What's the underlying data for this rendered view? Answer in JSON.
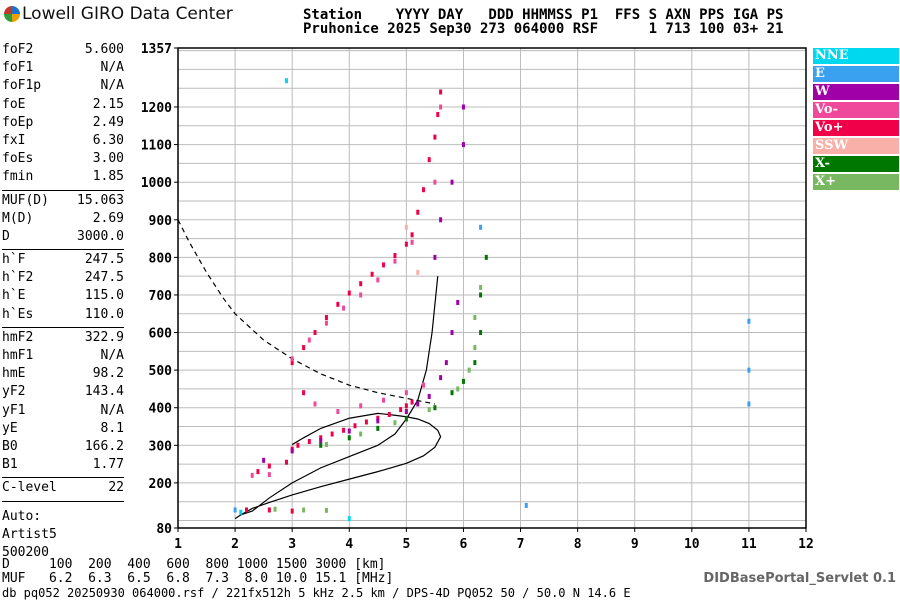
{
  "brand": {
    "name": "Lowell GIRO Data Center",
    "logo_icon": "pinwheel-icon",
    "logo_colors": [
      "#1a73c9",
      "#e8a000",
      "#2e9d3a",
      "#c0392b"
    ]
  },
  "header": {
    "line1": "Station    YYYY DAY   DDD HHMMSS P1  FFS S AXN PPS IGA PS",
    "line2": "Pruhonice 2025 Sep30 273 064000 RSF      1 713 100 03+ 21"
  },
  "params": {
    "group1": [
      {
        "label": "foF2",
        "value": "5.600"
      },
      {
        "label": "foF1",
        "value": "N/A"
      },
      {
        "label": "foF1p",
        "value": "N/A"
      },
      {
        "label": "foE",
        "value": "2.15"
      },
      {
        "label": "foEp",
        "value": "2.49"
      },
      {
        "label": "fxI",
        "value": "6.30"
      },
      {
        "label": "foEs",
        "value": "3.00"
      },
      {
        "label": "fmin",
        "value": "1.85"
      }
    ],
    "group2": [
      {
        "label": "MUF(D)",
        "value": "15.063"
      },
      {
        "label": "M(D)",
        "value": "2.69"
      },
      {
        "label": "D",
        "value": "3000.0"
      }
    ],
    "group3": [
      {
        "label": "h`F",
        "value": "247.5"
      },
      {
        "label": "h`F2",
        "value": "247.5"
      },
      {
        "label": "h`E",
        "value": "115.0"
      },
      {
        "label": "h`Es",
        "value": "110.0"
      }
    ],
    "group4": [
      {
        "label": "hmF2",
        "value": "322.9"
      },
      {
        "label": "hmF1",
        "value": "N/A"
      },
      {
        "label": "hmE",
        "value": "98.2"
      },
      {
        "label": "yF2",
        "value": "143.4"
      },
      {
        "label": "yF1",
        "value": "N/A"
      },
      {
        "label": "yE",
        "value": "8.1"
      },
      {
        "label": "B0",
        "value": "166.2"
      },
      {
        "label": "B1",
        "value": "1.77"
      }
    ],
    "group5": [
      {
        "label": "C-level",
        "value": "22"
      }
    ]
  },
  "auto": {
    "line1": "Auto:",
    "line2": "Artist5",
    "line3": "500200"
  },
  "legend": [
    {
      "label": "NNE",
      "color": "#00d8f0"
    },
    {
      "label": "E",
      "color": "#3aa0f0"
    },
    {
      "label": "W",
      "color": "#a000a8"
    },
    {
      "label": "Vo-",
      "color": "#f0489a"
    },
    {
      "label": "Vo+",
      "color": "#f00048"
    },
    {
      "label": "SSW",
      "color": "#f8b0a8"
    },
    {
      "label": "X-",
      "color": "#007800"
    },
    {
      "label": "X+",
      "color": "#78b860"
    }
  ],
  "bottom": {
    "d_line": "D     100  200  400  600  800 1000 1500 3000 [km]",
    "muf_line": "MUF   6.2  6.3  6.5  6.8  7.3  8.0 10.0 15.1 [MHz]",
    "file_line": "db pq052 20250930 064000.rsf / 221fx512h 5 kHz 2.5 km / DPS-4D PQ052 50 / 50.0 N 14.6 E"
  },
  "servlet": "DIDBasePortal_Servlet 0.1",
  "chart_data": {
    "type": "scatter",
    "xlim": [
      1,
      12
    ],
    "ylim": [
      80,
      1357
    ],
    "x_ticks": [
      1,
      2,
      3,
      4,
      5,
      6,
      7,
      8,
      9,
      10,
      11,
      12
    ],
    "y_ticks": [
      80,
      200,
      300,
      400,
      500,
      600,
      700,
      800,
      900,
      1000,
      1100,
      1200,
      1357
    ],
    "grid": true,
    "legend_position": "right",
    "series": [
      {
        "name": "Vo+",
        "color": "#f00048",
        "points": [
          [
            2.4,
            230
          ],
          [
            2.6,
            245
          ],
          [
            2.9,
            255
          ],
          [
            3.0,
            290
          ],
          [
            3.1,
            300
          ],
          [
            3.3,
            310
          ],
          [
            3.5,
            320
          ],
          [
            3.7,
            330
          ],
          [
            3.9,
            340
          ],
          [
            4.1,
            352
          ],
          [
            4.3,
            362
          ],
          [
            4.5,
            372
          ],
          [
            4.7,
            382
          ],
          [
            4.9,
            395
          ],
          [
            5.0,
            405
          ],
          [
            5.1,
            415
          ],
          [
            3.0,
            520
          ],
          [
            3.2,
            560
          ],
          [
            3.4,
            600
          ],
          [
            3.6,
            640
          ],
          [
            3.8,
            675
          ],
          [
            4.0,
            705
          ],
          [
            4.2,
            730
          ],
          [
            4.4,
            755
          ],
          [
            4.6,
            780
          ],
          [
            4.8,
            805
          ],
          [
            5.0,
            835
          ],
          [
            5.1,
            860
          ],
          [
            5.2,
            920
          ],
          [
            5.3,
            980
          ],
          [
            5.4,
            1060
          ],
          [
            5.5,
            1120
          ],
          [
            5.55,
            1180
          ],
          [
            5.6,
            1240
          ],
          [
            3.2,
            440
          ],
          [
            2.2,
            128
          ],
          [
            2.6,
            128
          ],
          [
            3.0,
            125
          ]
        ]
      },
      {
        "name": "Vo-",
        "color": "#f0489a",
        "points": [
          [
            3.0,
            530
          ],
          [
            3.3,
            580
          ],
          [
            3.6,
            625
          ],
          [
            3.9,
            665
          ],
          [
            4.2,
            700
          ],
          [
            4.5,
            740
          ],
          [
            4.8,
            790
          ],
          [
            5.1,
            840
          ],
          [
            3.4,
            410
          ],
          [
            3.8,
            390
          ],
          [
            4.2,
            405
          ],
          [
            4.6,
            420
          ],
          [
            5.0,
            440
          ],
          [
            5.3,
            460
          ],
          [
            5.5,
            1000
          ],
          [
            5.6,
            1200
          ],
          [
            2.3,
            220
          ],
          [
            2.6,
            222
          ]
        ]
      },
      {
        "name": "W",
        "color": "#a000a8",
        "points": [
          [
            2.5,
            260
          ],
          [
            3.0,
            285
          ],
          [
            3.5,
            312
          ],
          [
            4.0,
            338
          ],
          [
            4.5,
            365
          ],
          [
            5.0,
            390
          ],
          [
            5.2,
            410
          ],
          [
            5.4,
            430
          ],
          [
            5.6,
            480
          ],
          [
            5.7,
            520
          ],
          [
            5.8,
            600
          ],
          [
            5.9,
            680
          ],
          [
            5.5,
            800
          ],
          [
            5.6,
            900
          ],
          [
            5.8,
            1000
          ],
          [
            6.0,
            1100
          ],
          [
            6.0,
            1200
          ]
        ]
      },
      {
        "name": "X-",
        "color": "#007800",
        "points": [
          [
            3.5,
            300
          ],
          [
            4.0,
            320
          ],
          [
            4.5,
            345
          ],
          [
            5.0,
            370
          ],
          [
            5.5,
            400
          ],
          [
            5.8,
            440
          ],
          [
            6.0,
            470
          ],
          [
            6.2,
            520
          ],
          [
            6.3,
            600
          ],
          [
            6.3,
            700
          ],
          [
            6.4,
            800
          ]
        ]
      },
      {
        "name": "X+",
        "color": "#78b860",
        "points": [
          [
            3.6,
            302
          ],
          [
            4.2,
            330
          ],
          [
            4.8,
            360
          ],
          [
            5.4,
            395
          ],
          [
            5.9,
            450
          ],
          [
            6.1,
            500
          ],
          [
            6.2,
            560
          ],
          [
            6.2,
            640
          ],
          [
            6.3,
            720
          ],
          [
            2.7,
            130
          ],
          [
            3.2,
            128
          ],
          [
            3.6,
            127
          ]
        ]
      },
      {
        "name": "E",
        "color": "#3aa0f0",
        "points": [
          [
            2.0,
            128
          ],
          [
            6.3,
            880
          ],
          [
            7.1,
            140
          ],
          [
            11.0,
            630
          ],
          [
            11.0,
            500
          ],
          [
            11.0,
            410
          ]
        ]
      },
      {
        "name": "NNE",
        "color": "#00d8f0",
        "points": [
          [
            2.1,
            122
          ],
          [
            2.9,
            1270
          ],
          [
            4.0,
            105
          ]
        ]
      },
      {
        "name": "SSW",
        "color": "#f8b0a8",
        "points": [
          [
            5.0,
            880
          ],
          [
            5.2,
            760
          ]
        ]
      }
    ],
    "profile_curve": [
      [
        2.0,
        105
      ],
      [
        2.1,
        115
      ],
      [
        2.3,
        132
      ],
      [
        2.6,
        148
      ],
      [
        3.0,
        168
      ],
      [
        3.5,
        190
      ],
      [
        4.0,
        210
      ],
      [
        4.5,
        230
      ],
      [
        5.0,
        252
      ],
      [
        5.3,
        272
      ],
      [
        5.5,
        295
      ],
      [
        5.6,
        322.9
      ],
      [
        5.55,
        340
      ],
      [
        5.4,
        358
      ],
      [
        5.2,
        370
      ],
      [
        5.0,
        376
      ],
      [
        4.8,
        380
      ],
      [
        4.5,
        385
      ],
      [
        4.0,
        372
      ],
      [
        3.5,
        345
      ],
      [
        3.2,
        320
      ],
      [
        3.0,
        302
      ]
    ],
    "virtual_height_curve": [
      [
        2.1,
        115
      ],
      [
        2.3,
        125
      ],
      [
        2.6,
        160
      ],
      [
        3.0,
        200
      ],
      [
        3.5,
        240
      ],
      [
        4.0,
        270
      ],
      [
        4.5,
        300
      ],
      [
        4.8,
        330
      ],
      [
        5.0,
        370
      ],
      [
        5.2,
        420
      ],
      [
        5.35,
        500
      ],
      [
        5.45,
        600
      ],
      [
        5.55,
        750
      ]
    ],
    "muf_curve": [
      [
        1.0,
        900
      ],
      [
        1.2,
        840
      ],
      [
        1.5,
        760
      ],
      [
        1.8,
        690
      ],
      [
        2.0,
        650
      ],
      [
        2.5,
        580
      ],
      [
        3.0,
        530
      ],
      [
        3.5,
        490
      ],
      [
        4.0,
        460
      ],
      [
        4.5,
        440
      ],
      [
        5.0,
        425
      ],
      [
        5.5,
        410
      ]
    ]
  }
}
